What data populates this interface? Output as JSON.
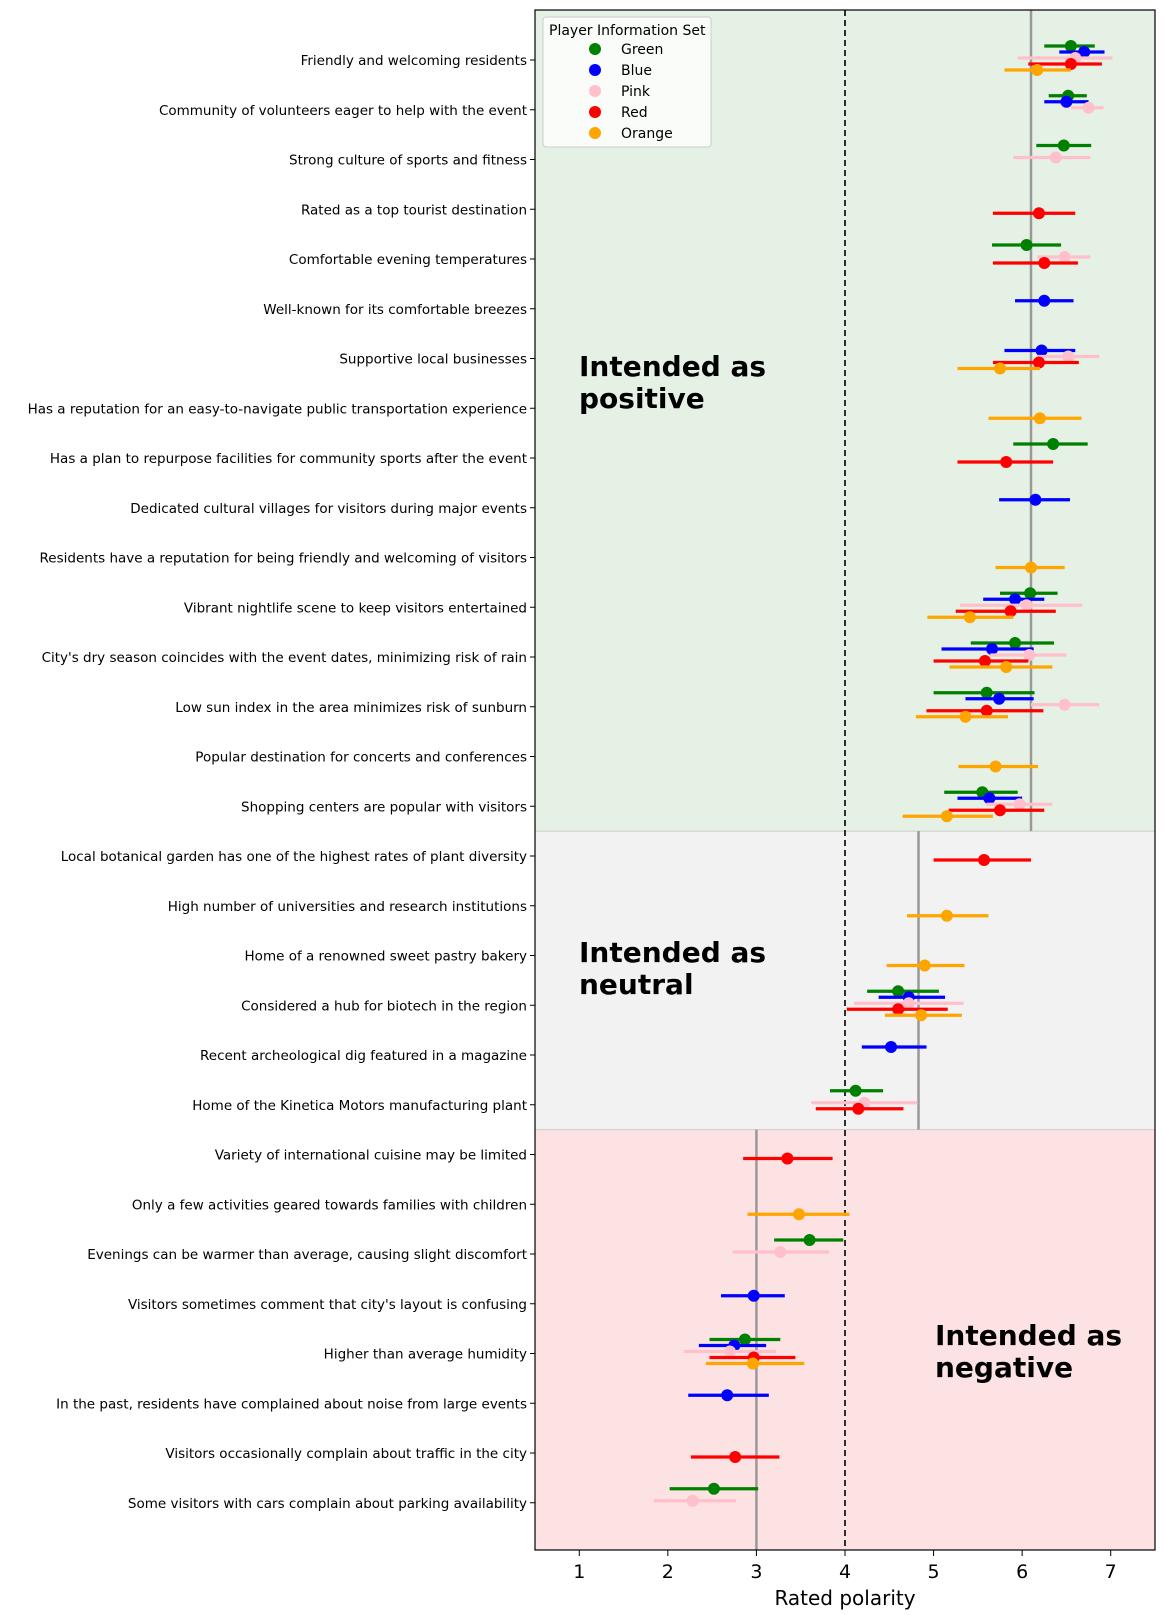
{
  "chart_data": {
    "type": "scatter",
    "xlabel": "Rated polarity",
    "xlim": [
      0.5,
      7.5
    ],
    "xticks": [
      "1",
      "2",
      "3",
      "4",
      "5",
      "6",
      "7"
    ],
    "neutral_line": 4,
    "legend": {
      "title": "Player Information Set",
      "entries": [
        {
          "name": "Green",
          "color": "#008000"
        },
        {
          "name": "Blue",
          "color": "#0000ff"
        },
        {
          "name": "Pink",
          "color": "#ffc0cb"
        },
        {
          "name": "Red",
          "color": "#ff0000"
        },
        {
          "name": "Orange",
          "color": "#ffa500"
        }
      ],
      "location": "top-left"
    },
    "regions": [
      {
        "label_line1": "Intended as",
        "label_line2": "positive",
        "color": "#e6f1e6",
        "first_row": 0,
        "last_row": 15,
        "group_mean": 6.1
      },
      {
        "label_line1": "Intended as",
        "label_line2": "neutral",
        "color": "#f2f2f2",
        "first_row": 16,
        "last_row": 21,
        "group_mean": 4.83
      },
      {
        "label_line1": "Intended as",
        "label_line2": "negative",
        "color": "#fde2e4",
        "first_row": 22,
        "last_row": 29,
        "group_mean": 3.0
      }
    ],
    "items": [
      {
        "label": "Friendly and welcoming residents",
        "points": [
          {
            "set": "Green",
            "mean": 6.55,
            "lo": 6.25,
            "hi": 6.82
          },
          {
            "set": "Blue",
            "mean": 6.7,
            "lo": 6.42,
            "hi": 6.93
          },
          {
            "set": "Pink",
            "mean": 6.6,
            "lo": 5.95,
            "hi": 7.02
          },
          {
            "set": "Red",
            "mean": 6.55,
            "lo": 6.07,
            "hi": 6.9
          },
          {
            "set": "Orange",
            "mean": 6.17,
            "lo": 5.8,
            "hi": 6.55
          }
        ]
      },
      {
        "label": "Community of volunteers eager to help with the event",
        "points": [
          {
            "set": "Green",
            "mean": 6.52,
            "lo": 6.3,
            "hi": 6.73
          },
          {
            "set": "Blue",
            "mean": 6.5,
            "lo": 6.25,
            "hi": 6.75
          },
          {
            "set": "Pink",
            "mean": 6.75,
            "lo": 6.55,
            "hi": 6.92
          }
        ]
      },
      {
        "label": "Strong culture of sports and fitness",
        "points": [
          {
            "set": "Green",
            "mean": 6.47,
            "lo": 6.16,
            "hi": 6.78
          },
          {
            "set": "Pink",
            "mean": 6.38,
            "lo": 5.9,
            "hi": 6.77
          }
        ]
      },
      {
        "label": "Rated as a top tourist destination",
        "points": [
          {
            "set": "Red",
            "mean": 6.19,
            "lo": 5.67,
            "hi": 6.6
          }
        ]
      },
      {
        "label": "Comfortable evening temperatures",
        "points": [
          {
            "set": "Green",
            "mean": 6.05,
            "lo": 5.66,
            "hi": 6.44
          },
          {
            "set": "Pink",
            "mean": 6.48,
            "lo": 6.17,
            "hi": 6.77
          },
          {
            "set": "Red",
            "mean": 6.25,
            "lo": 5.67,
            "hi": 6.63
          }
        ]
      },
      {
        "label": "Well-known for its comfortable breezes",
        "points": [
          {
            "set": "Blue",
            "mean": 6.25,
            "lo": 5.92,
            "hi": 6.58
          }
        ]
      },
      {
        "label": "Supportive local businesses",
        "points": [
          {
            "set": "Blue",
            "mean": 6.22,
            "lo": 5.8,
            "hi": 6.6
          },
          {
            "set": "Pink",
            "mean": 6.52,
            "lo": 6.17,
            "hi": 6.87
          },
          {
            "set": "Red",
            "mean": 6.19,
            "lo": 5.67,
            "hi": 6.64
          },
          {
            "set": "Orange",
            "mean": 5.75,
            "lo": 5.27,
            "hi": 6.2
          }
        ]
      },
      {
        "label": "Has a reputation for an easy-to-navigate public transportation experience",
        "points": [
          {
            "set": "Orange",
            "mean": 6.2,
            "lo": 5.62,
            "hi": 6.67
          }
        ]
      },
      {
        "label": "Has a plan to repurpose facilities for community sports after the event",
        "points": [
          {
            "set": "Green",
            "mean": 6.35,
            "lo": 5.9,
            "hi": 6.74
          },
          {
            "set": "Red",
            "mean": 5.82,
            "lo": 5.27,
            "hi": 6.35
          }
        ]
      },
      {
        "label": "Dedicated cultural villages for visitors during major events",
        "points": [
          {
            "set": "Blue",
            "mean": 6.15,
            "lo": 5.74,
            "hi": 6.54
          }
        ]
      },
      {
        "label": "Residents have a reputation for being friendly and welcoming of visitors",
        "points": [
          {
            "set": "Orange",
            "mean": 6.1,
            "lo": 5.7,
            "hi": 6.48
          }
        ]
      },
      {
        "label": "Vibrant nightlife scene to keep visitors entertained",
        "points": [
          {
            "set": "Green",
            "mean": 6.09,
            "lo": 5.75,
            "hi": 6.4
          },
          {
            "set": "Blue",
            "mean": 5.92,
            "lo": 5.56,
            "hi": 6.25
          },
          {
            "set": "Pink",
            "mean": 6.05,
            "lo": 5.3,
            "hi": 6.68
          },
          {
            "set": "Red",
            "mean": 5.87,
            "lo": 5.25,
            "hi": 6.38
          },
          {
            "set": "Orange",
            "mean": 5.41,
            "lo": 4.93,
            "hi": 5.9
          }
        ]
      },
      {
        "label": "City's dry season coincides with the event dates, minimizing risk of rain",
        "points": [
          {
            "set": "Green",
            "mean": 5.92,
            "lo": 5.42,
            "hi": 6.36
          },
          {
            "set": "Blue",
            "mean": 5.66,
            "lo": 5.09,
            "hi": 6.13
          },
          {
            "set": "Pink",
            "mean": 6.08,
            "lo": 5.64,
            "hi": 6.5
          },
          {
            "set": "Red",
            "mean": 5.58,
            "lo": 5.0,
            "hi": 6.07
          },
          {
            "set": "Orange",
            "mean": 5.82,
            "lo": 5.18,
            "hi": 6.34
          }
        ]
      },
      {
        "label": "Low sun index in the area minimizes risk of sunburn",
        "points": [
          {
            "set": "Green",
            "mean": 5.6,
            "lo": 5.0,
            "hi": 6.14
          },
          {
            "set": "Blue",
            "mean": 5.74,
            "lo": 5.36,
            "hi": 6.13
          },
          {
            "set": "Pink",
            "mean": 6.48,
            "lo": 6.1,
            "hi": 6.87
          },
          {
            "set": "Red",
            "mean": 5.6,
            "lo": 4.92,
            "hi": 6.24
          },
          {
            "set": "Orange",
            "mean": 5.36,
            "lo": 4.8,
            "hi": 5.84
          }
        ]
      },
      {
        "label": "Popular destination for concerts and conferences",
        "points": [
          {
            "set": "Orange",
            "mean": 5.7,
            "lo": 5.28,
            "hi": 6.18
          }
        ]
      },
      {
        "label": "Shopping centers are popular with visitors",
        "points": [
          {
            "set": "Green",
            "mean": 5.55,
            "lo": 5.12,
            "hi": 5.95
          },
          {
            "set": "Blue",
            "mean": 5.63,
            "lo": 5.27,
            "hi": 6.0
          },
          {
            "set": "Pink",
            "mean": 5.97,
            "lo": 5.6,
            "hi": 6.34
          },
          {
            "set": "Red",
            "mean": 5.75,
            "lo": 5.17,
            "hi": 6.25
          },
          {
            "set": "Orange",
            "mean": 5.15,
            "lo": 4.65,
            "hi": 5.67
          }
        ]
      },
      {
        "label": "Local botanical garden has one of the highest rates of plant diversity",
        "points": [
          {
            "set": "Red",
            "mean": 5.57,
            "lo": 5.0,
            "hi": 6.1
          }
        ]
      },
      {
        "label": "High number of universities and research institutions",
        "points": [
          {
            "set": "Orange",
            "mean": 5.15,
            "lo": 4.7,
            "hi": 5.62
          }
        ]
      },
      {
        "label": "Home of a renowned sweet pastry bakery",
        "points": [
          {
            "set": "Orange",
            "mean": 4.9,
            "lo": 4.47,
            "hi": 5.35
          }
        ]
      },
      {
        "label": "Considered a hub for biotech in the region",
        "points": [
          {
            "set": "Green",
            "mean": 4.6,
            "lo": 4.25,
            "hi": 5.06
          },
          {
            "set": "Blue",
            "mean": 4.72,
            "lo": 4.38,
            "hi": 5.13
          },
          {
            "set": "Pink",
            "mean": 4.72,
            "lo": 4.1,
            "hi": 5.34
          },
          {
            "set": "Red",
            "mean": 4.6,
            "lo": 4.02,
            "hi": 5.16
          },
          {
            "set": "Orange",
            "mean": 4.86,
            "lo": 4.45,
            "hi": 5.32
          }
        ]
      },
      {
        "label": "Recent archeological dig featured in a magazine",
        "points": [
          {
            "set": "Blue",
            "mean": 4.52,
            "lo": 4.19,
            "hi": 4.92
          }
        ]
      },
      {
        "label": "Home of the Kinetica Motors manufacturing plant",
        "points": [
          {
            "set": "Green",
            "mean": 4.12,
            "lo": 3.83,
            "hi": 4.43
          },
          {
            "set": "Pink",
            "mean": 4.22,
            "lo": 3.62,
            "hi": 4.82
          },
          {
            "set": "Red",
            "mean": 4.15,
            "lo": 3.67,
            "hi": 4.66
          }
        ]
      },
      {
        "label": "Variety of international cuisine may be limited",
        "points": [
          {
            "set": "Red",
            "mean": 3.35,
            "lo": 2.85,
            "hi": 3.86
          }
        ]
      },
      {
        "label": "Only a few activities geared towards families with children",
        "points": [
          {
            "set": "Orange",
            "mean": 3.48,
            "lo": 2.9,
            "hi": 4.05
          }
        ]
      },
      {
        "label": "Evenings can be warmer than average, causing slight discomfort",
        "points": [
          {
            "set": "Green",
            "mean": 3.6,
            "lo": 3.2,
            "hi": 3.98
          },
          {
            "set": "Pink",
            "mean": 3.27,
            "lo": 2.73,
            "hi": 3.82
          }
        ]
      },
      {
        "label": "Visitors sometimes comment that city's layout is confusing",
        "points": [
          {
            "set": "Blue",
            "mean": 2.97,
            "lo": 2.6,
            "hi": 3.32
          }
        ]
      },
      {
        "label": "Higher than average humidity",
        "points": [
          {
            "set": "Green",
            "mean": 2.87,
            "lo": 2.47,
            "hi": 3.27
          },
          {
            "set": "Blue",
            "mean": 2.75,
            "lo": 2.35,
            "hi": 3.11
          },
          {
            "set": "Pink",
            "mean": 2.7,
            "lo": 2.18,
            "hi": 3.22
          },
          {
            "set": "Red",
            "mean": 2.97,
            "lo": 2.47,
            "hi": 3.44
          },
          {
            "set": "Orange",
            "mean": 2.96,
            "lo": 2.43,
            "hi": 3.54
          }
        ]
      },
      {
        "label": "In the past, residents have complained about noise from large events",
        "points": [
          {
            "set": "Blue",
            "mean": 2.67,
            "lo": 2.23,
            "hi": 3.14
          }
        ]
      },
      {
        "label": "Visitors occasionally complain about traffic in the city",
        "points": [
          {
            "set": "Red",
            "mean": 2.76,
            "lo": 2.26,
            "hi": 3.26
          }
        ]
      },
      {
        "label": "Some visitors with cars complain about parking availability",
        "points": [
          {
            "set": "Green",
            "mean": 2.52,
            "lo": 2.02,
            "hi": 3.02
          },
          {
            "set": "Pink",
            "mean": 2.28,
            "lo": 1.84,
            "hi": 2.77
          }
        ]
      }
    ]
  }
}
